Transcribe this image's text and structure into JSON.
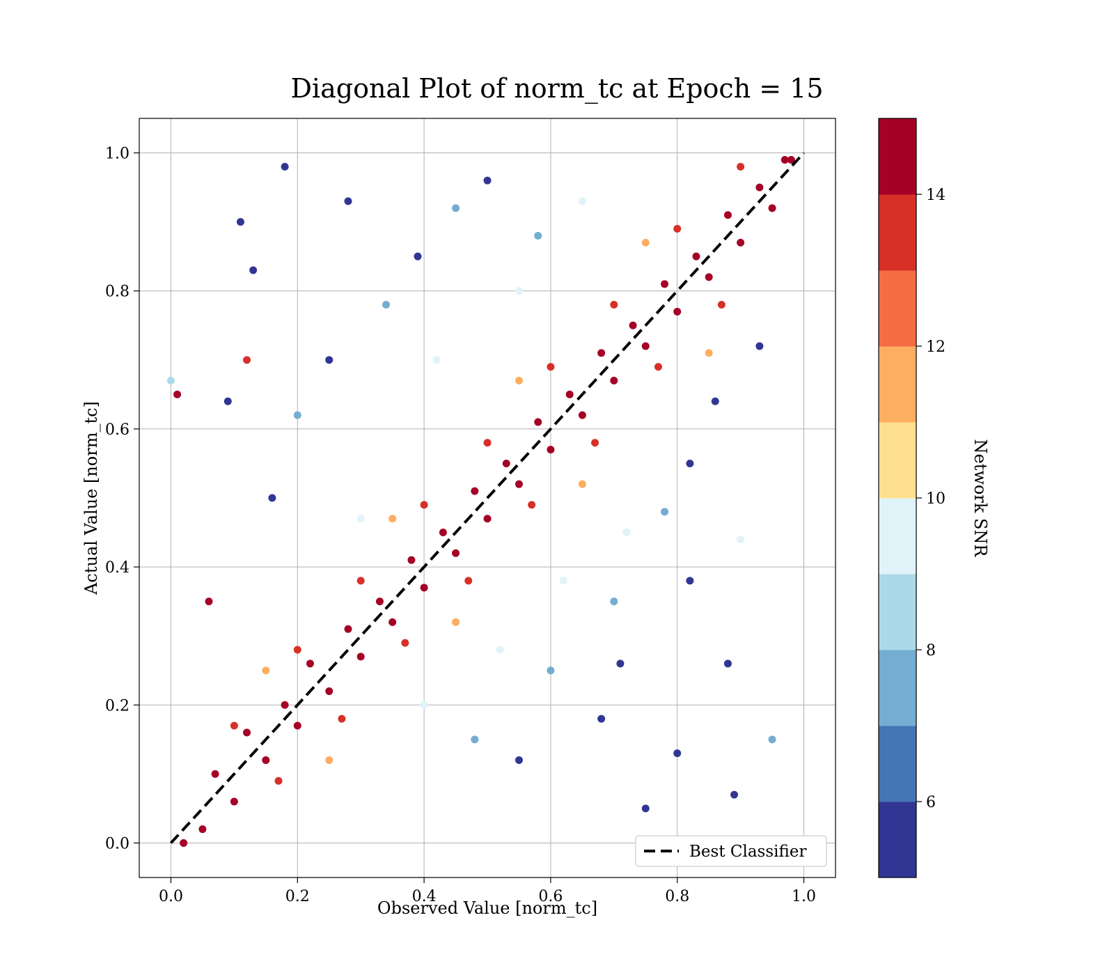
{
  "chart_data": {
    "type": "scatter",
    "title": "Diagonal Plot of norm_tc at Epoch = 15",
    "xlabel": "Observed Value [norm_tc]",
    "ylabel": "Actual Value [norm_tc]",
    "xlim": [
      -0.05,
      1.05
    ],
    "ylim": [
      -0.05,
      1.05
    ],
    "x_ticks": [
      "0.0",
      "0.2",
      "0.4",
      "0.6",
      "0.8",
      "1.0"
    ],
    "y_ticks": [
      "0.0",
      "0.2",
      "0.4",
      "0.6",
      "0.8",
      "1.0"
    ],
    "grid": true,
    "legend": {
      "placement": "lower-right",
      "entries": [
        "Best Classifier"
      ]
    },
    "reference_line": {
      "name": "Best Classifier",
      "style": "dashed",
      "color": "#000000",
      "from": [
        0,
        0
      ],
      "to": [
        1,
        1
      ]
    },
    "colorbar": {
      "label": "Network SNR",
      "range": [
        5,
        15
      ],
      "ticks": [
        "6",
        "8",
        "10",
        "12",
        "14"
      ],
      "colors": [
        "#313695",
        "#4575b4",
        "#74add1",
        "#abd9e9",
        "#e0f3f8",
        "#fee090",
        "#fdae61",
        "#f46d43",
        "#d73027",
        "#a50026"
      ]
    },
    "points": [
      {
        "x": 0.07,
        "y": 0.1,
        "snr": 15
      },
      {
        "x": 0.12,
        "y": 0.16,
        "snr": 15
      },
      {
        "x": 0.18,
        "y": 0.2,
        "snr": 15
      },
      {
        "x": 0.22,
        "y": 0.26,
        "snr": 15
      },
      {
        "x": 0.28,
        "y": 0.31,
        "snr": 15
      },
      {
        "x": 0.33,
        "y": 0.35,
        "snr": 15
      },
      {
        "x": 0.38,
        "y": 0.41,
        "snr": 15
      },
      {
        "x": 0.43,
        "y": 0.45,
        "snr": 15
      },
      {
        "x": 0.48,
        "y": 0.51,
        "snr": 15
      },
      {
        "x": 0.53,
        "y": 0.55,
        "snr": 15
      },
      {
        "x": 0.58,
        "y": 0.61,
        "snr": 15
      },
      {
        "x": 0.63,
        "y": 0.65,
        "snr": 15
      },
      {
        "x": 0.68,
        "y": 0.71,
        "snr": 15
      },
      {
        "x": 0.73,
        "y": 0.75,
        "snr": 15
      },
      {
        "x": 0.78,
        "y": 0.81,
        "snr": 15
      },
      {
        "x": 0.83,
        "y": 0.85,
        "snr": 15
      },
      {
        "x": 0.88,
        "y": 0.91,
        "snr": 15
      },
      {
        "x": 0.93,
        "y": 0.95,
        "snr": 15
      },
      {
        "x": 0.97,
        "y": 0.99,
        "snr": 15
      },
      {
        "x": 0.05,
        "y": 0.02,
        "snr": 15
      },
      {
        "x": 0.1,
        "y": 0.06,
        "snr": 15
      },
      {
        "x": 0.15,
        "y": 0.12,
        "snr": 15
      },
      {
        "x": 0.2,
        "y": 0.17,
        "snr": 15
      },
      {
        "x": 0.25,
        "y": 0.22,
        "snr": 15
      },
      {
        "x": 0.3,
        "y": 0.27,
        "snr": 15
      },
      {
        "x": 0.35,
        "y": 0.32,
        "snr": 15
      },
      {
        "x": 0.4,
        "y": 0.37,
        "snr": 15
      },
      {
        "x": 0.45,
        "y": 0.42,
        "snr": 15
      },
      {
        "x": 0.5,
        "y": 0.47,
        "snr": 15
      },
      {
        "x": 0.55,
        "y": 0.52,
        "snr": 15
      },
      {
        "x": 0.6,
        "y": 0.57,
        "snr": 15
      },
      {
        "x": 0.65,
        "y": 0.62,
        "snr": 15
      },
      {
        "x": 0.7,
        "y": 0.67,
        "snr": 15
      },
      {
        "x": 0.75,
        "y": 0.72,
        "snr": 15
      },
      {
        "x": 0.8,
        "y": 0.77,
        "snr": 15
      },
      {
        "x": 0.85,
        "y": 0.82,
        "snr": 15
      },
      {
        "x": 0.9,
        "y": 0.87,
        "snr": 15
      },
      {
        "x": 0.95,
        "y": 0.92,
        "snr": 15
      },
      {
        "x": 0.1,
        "y": 0.17,
        "snr": 13
      },
      {
        "x": 0.2,
        "y": 0.28,
        "snr": 13
      },
      {
        "x": 0.3,
        "y": 0.38,
        "snr": 13
      },
      {
        "x": 0.4,
        "y": 0.49,
        "snr": 13
      },
      {
        "x": 0.5,
        "y": 0.58,
        "snr": 13
      },
      {
        "x": 0.6,
        "y": 0.69,
        "snr": 13
      },
      {
        "x": 0.7,
        "y": 0.78,
        "snr": 13
      },
      {
        "x": 0.8,
        "y": 0.89,
        "snr": 13
      },
      {
        "x": 0.9,
        "y": 0.98,
        "snr": 13
      },
      {
        "x": 0.17,
        "y": 0.09,
        "snr": 13
      },
      {
        "x": 0.27,
        "y": 0.18,
        "snr": 13
      },
      {
        "x": 0.37,
        "y": 0.29,
        "snr": 13
      },
      {
        "x": 0.47,
        "y": 0.38,
        "snr": 13
      },
      {
        "x": 0.57,
        "y": 0.49,
        "snr": 13
      },
      {
        "x": 0.67,
        "y": 0.58,
        "snr": 13
      },
      {
        "x": 0.77,
        "y": 0.69,
        "snr": 13
      },
      {
        "x": 0.87,
        "y": 0.78,
        "snr": 13
      },
      {
        "x": 0.15,
        "y": 0.25,
        "snr": 11
      },
      {
        "x": 0.35,
        "y": 0.47,
        "snr": 11
      },
      {
        "x": 0.55,
        "y": 0.67,
        "snr": 11
      },
      {
        "x": 0.75,
        "y": 0.87,
        "snr": 11
      },
      {
        "x": 0.25,
        "y": 0.12,
        "snr": 11
      },
      {
        "x": 0.45,
        "y": 0.32,
        "snr": 11
      },
      {
        "x": 0.65,
        "y": 0.52,
        "snr": 11
      },
      {
        "x": 0.85,
        "y": 0.71,
        "snr": 11
      },
      {
        "x": 0.3,
        "y": 0.47,
        "snr": 9
      },
      {
        "x": 0.42,
        "y": 0.7,
        "snr": 9
      },
      {
        "x": 0.55,
        "y": 0.8,
        "snr": 9
      },
      {
        "x": 0.65,
        "y": 0.93,
        "snr": 9
      },
      {
        "x": 0.4,
        "y": 0.2,
        "snr": 9
      },
      {
        "x": 0.52,
        "y": 0.28,
        "snr": 9
      },
      {
        "x": 0.62,
        "y": 0.38,
        "snr": 9
      },
      {
        "x": 0.72,
        "y": 0.45,
        "snr": 9
      },
      {
        "x": 0.2,
        "y": 0.62,
        "snr": 7
      },
      {
        "x": 0.34,
        "y": 0.78,
        "snr": 7
      },
      {
        "x": 0.45,
        "y": 0.92,
        "snr": 7
      },
      {
        "x": 0.58,
        "y": 0.88,
        "snr": 7
      },
      {
        "x": 0.48,
        "y": 0.15,
        "snr": 7
      },
      {
        "x": 0.6,
        "y": 0.25,
        "snr": 7
      },
      {
        "x": 0.7,
        "y": 0.35,
        "snr": 7
      },
      {
        "x": 0.78,
        "y": 0.48,
        "snr": 7
      },
      {
        "x": 0.11,
        "y": 0.9,
        "snr": 5
      },
      {
        "x": 0.09,
        "y": 0.64,
        "snr": 5
      },
      {
        "x": 0.13,
        "y": 0.83,
        "snr": 5
      },
      {
        "x": 0.18,
        "y": 0.98,
        "snr": 5
      },
      {
        "x": 0.16,
        "y": 0.5,
        "snr": 5
      },
      {
        "x": 0.25,
        "y": 0.7,
        "snr": 5
      },
      {
        "x": 0.28,
        "y": 0.93,
        "snr": 5
      },
      {
        "x": 0.39,
        "y": 0.85,
        "snr": 5
      },
      {
        "x": 0.5,
        "y": 0.96,
        "snr": 5
      },
      {
        "x": 0.55,
        "y": 0.12,
        "snr": 5
      },
      {
        "x": 0.68,
        "y": 0.18,
        "snr": 5
      },
      {
        "x": 0.75,
        "y": 0.05,
        "snr": 5
      },
      {
        "x": 0.82,
        "y": 0.38,
        "snr": 5
      },
      {
        "x": 0.88,
        "y": 0.26,
        "snr": 5
      },
      {
        "x": 0.93,
        "y": 0.72,
        "snr": 5
      },
      {
        "x": 0.89,
        "y": 0.07,
        "snr": 5
      },
      {
        "x": 0.8,
        "y": 0.13,
        "snr": 5
      },
      {
        "x": 0.71,
        "y": 0.26,
        "snr": 5
      },
      {
        "x": 0.82,
        "y": 0.55,
        "snr": 5
      },
      {
        "x": 0.86,
        "y": 0.64,
        "snr": 5
      },
      {
        "x": 0.0,
        "y": 0.67,
        "snr": 8
      },
      {
        "x": 0.95,
        "y": 0.15,
        "snr": 7
      },
      {
        "x": 0.01,
        "y": 0.65,
        "snr": 15
      },
      {
        "x": 0.06,
        "y": 0.35,
        "snr": 15
      },
      {
        "x": 0.12,
        "y": 0.7,
        "snr": 13
      },
      {
        "x": 0.9,
        "y": 0.44,
        "snr": 9
      },
      {
        "x": 0.98,
        "y": 0.99,
        "snr": 15
      },
      {
        "x": 0.02,
        "y": 0.0,
        "snr": 15
      }
    ]
  }
}
